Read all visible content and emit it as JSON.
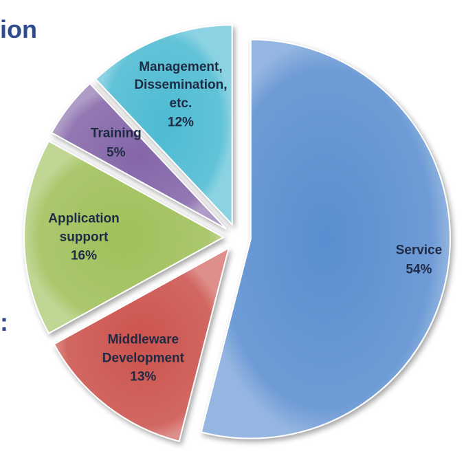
{
  "chart_data": {
    "type": "pie",
    "title": "ion",
    "annotations": [
      ":"
    ],
    "categories": [
      "Service",
      "Middleware\nDevelopment",
      "Application\nsupport",
      "Training",
      "Management,\nDissemination,\netc."
    ],
    "values": [
      54,
      13,
      16,
      5,
      12
    ],
    "value_labels": [
      "54%",
      "13%",
      "16%",
      "5%",
      "12%"
    ],
    "colors": [
      "#5a8ed0",
      "#cc534e",
      "#9fc05a",
      "#8466a8",
      "#4dbbd2"
    ]
  }
}
